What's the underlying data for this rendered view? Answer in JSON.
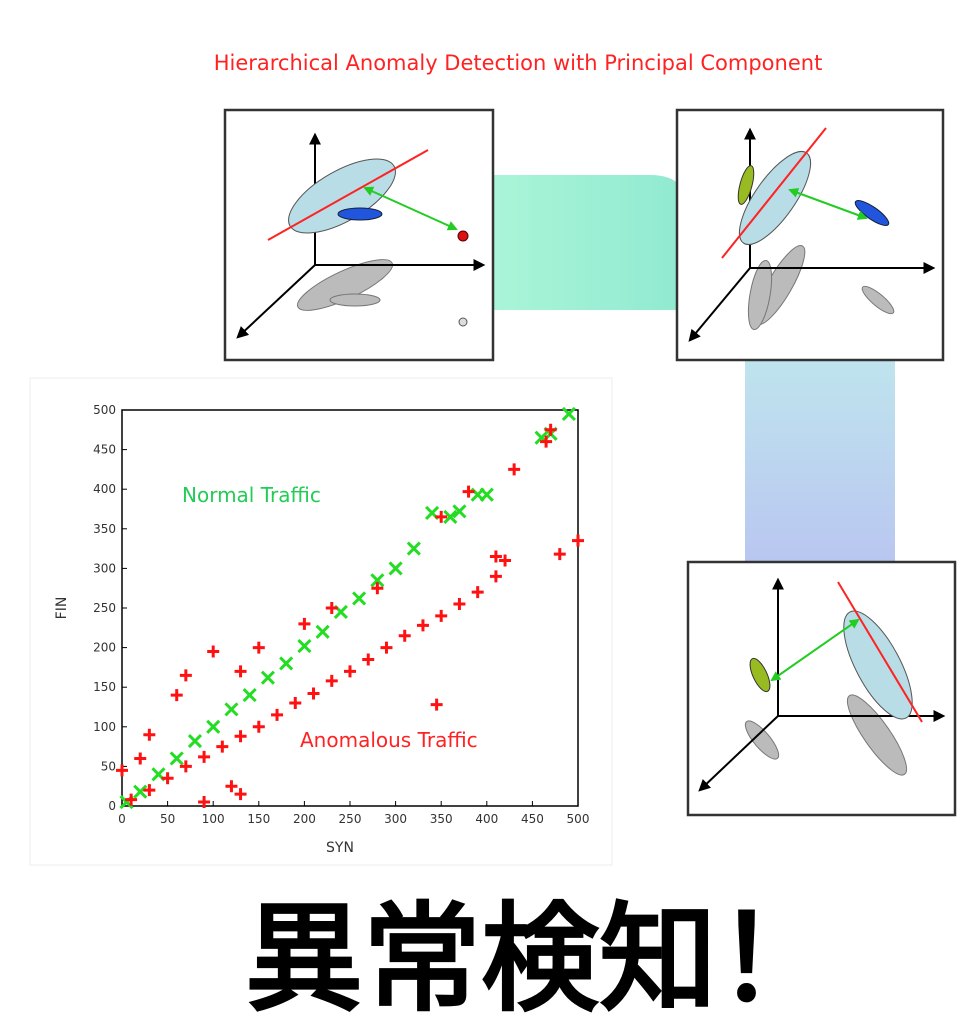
{
  "title": "Hierarchical Anomaly Detection with Principal Component",
  "caption": "異常検知！",
  "chart_data": {
    "type": "scatter",
    "xlabel": "SYN",
    "ylabel": "FIN",
    "annotations": [
      "Normal Traffic",
      "Anomalous Traffic"
    ],
    "xlim": [
      0,
      500
    ],
    "ylim": [
      0,
      500
    ],
    "xticks": [
      0,
      50,
      100,
      150,
      200,
      250,
      300,
      350,
      400,
      450,
      500
    ],
    "yticks": [
      0,
      50,
      100,
      150,
      200,
      250,
      300,
      350,
      400,
      450,
      500
    ],
    "series": [
      {
        "name": "Normal Traffic",
        "color": "#22dd22",
        "marker": "x",
        "x": [
          5,
          20,
          40,
          60,
          80,
          100,
          120,
          140,
          160,
          180,
          200,
          220,
          240,
          260,
          280,
          300,
          320,
          340,
          360,
          370,
          390,
          400,
          460,
          470,
          490
        ],
        "values": [
          5,
          18,
          40,
          60,
          82,
          100,
          122,
          140,
          162,
          180,
          202,
          220,
          245,
          262,
          285,
          300,
          325,
          370,
          365,
          372,
          393,
          393,
          465,
          470,
          495
        ]
      },
      {
        "name": "Anomalous Traffic",
        "color": "#ff1111",
        "marker": "+",
        "x": [
          10,
          30,
          50,
          70,
          90,
          110,
          130,
          150,
          170,
          190,
          210,
          230,
          250,
          270,
          290,
          310,
          330,
          350,
          370,
          390,
          410,
          420,
          430,
          470,
          480,
          500,
          465,
          30,
          60,
          70,
          100,
          130,
          150,
          200,
          230,
          280,
          350,
          380,
          90,
          120,
          130,
          0,
          345,
          410,
          20
        ],
        "values": [
          8,
          20,
          35,
          50,
          62,
          75,
          88,
          100,
          115,
          130,
          142,
          158,
          170,
          185,
          200,
          215,
          228,
          240,
          255,
          270,
          290,
          310,
          425,
          475,
          318,
          335,
          460,
          90,
          140,
          165,
          195,
          170,
          200,
          230,
          250,
          275,
          365,
          397,
          5,
          25,
          15,
          45,
          128,
          315,
          60
        ]
      }
    ]
  }
}
